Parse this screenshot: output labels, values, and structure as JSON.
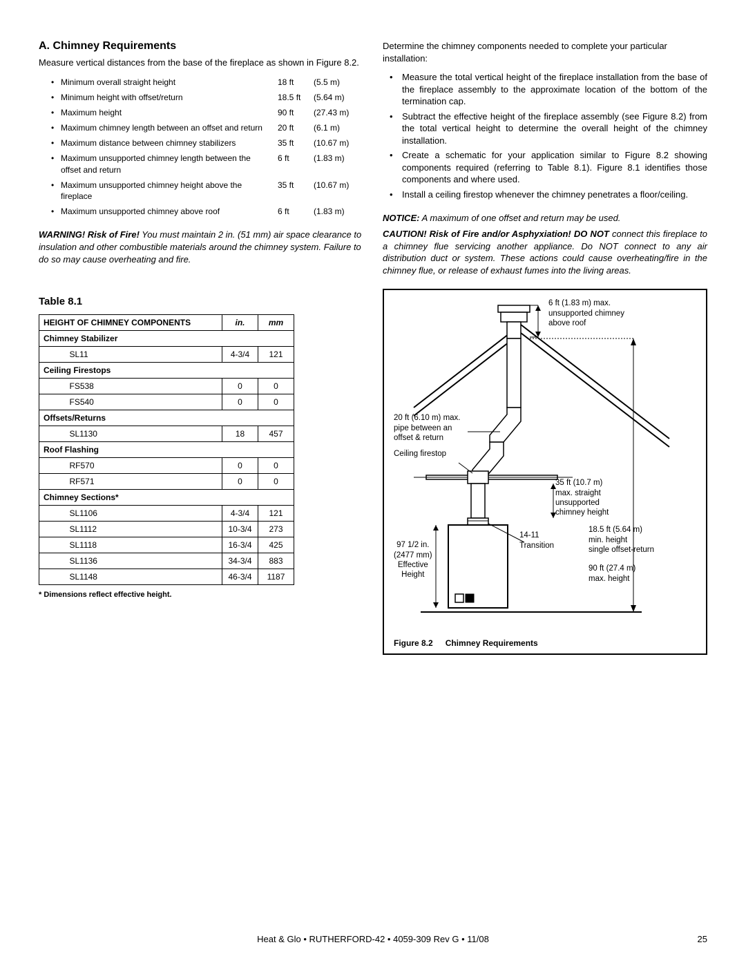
{
  "left": {
    "title": "A. Chimney Requirements",
    "intro": "Measure vertical distances from the base of the fireplace as shown in Figure 8.2.",
    "reqs": [
      {
        "label": "Minimum overall straight height",
        "ft": "18 ft",
        "m": "(5.5 m)"
      },
      {
        "label": "Minimum height with offset/return",
        "ft": "18.5 ft",
        "m": "(5.64 m)"
      },
      {
        "label": "Maximum height",
        "ft": "90 ft",
        "m": "(27.43 m)"
      },
      {
        "label": "Maximum chimney length between an offset and return",
        "ft": "20 ft",
        "m": "(6.1 m)"
      },
      {
        "label": "Maximum distance between chimney stabilizers",
        "ft": "35 ft",
        "m": "(10.67 m)"
      },
      {
        "label": "Maximum unsupported chimney length between the offset and return",
        "ft": "6 ft",
        "m": "(1.83 m)"
      },
      {
        "label": "Maximum unsupported chimney height above the fireplace",
        "ft": "35 ft",
        "m": "(10.67 m)"
      },
      {
        "label": "Maximum unsupported chimney above roof",
        "ft": "6 ft",
        "m": "(1.83 m)"
      }
    ],
    "warning_bold": "WARNING! Risk of Fire!",
    "warning_rest": " You must maintain 2 in. (51 mm) air space clearance to insulation and other combustible materials around the chimney system. Failure to do so may cause overheating and fire.",
    "table_title": "Table 8.1",
    "table_header": {
      "c0": "HEIGHT OF CHIMNEY COMPONENTS",
      "c1": "in.",
      "c2": "mm"
    },
    "rows": [
      {
        "type": "group",
        "label": "Chimney Stabilizer"
      },
      {
        "type": "data",
        "name": "SL11",
        "in": "4-3/4",
        "mm": "121"
      },
      {
        "type": "group",
        "label": "Ceiling Firestops"
      },
      {
        "type": "data",
        "name": "FS538",
        "in": "0",
        "mm": "0"
      },
      {
        "type": "data",
        "name": "FS540",
        "in": "0",
        "mm": "0"
      },
      {
        "type": "group",
        "label": "Offsets/Returns"
      },
      {
        "type": "data",
        "name": "SL1130",
        "in": "18",
        "mm": "457"
      },
      {
        "type": "group",
        "label": "Roof Flashing"
      },
      {
        "type": "data",
        "name": "RF570",
        "in": "0",
        "mm": "0"
      },
      {
        "type": "data",
        "name": "RF571",
        "in": "0",
        "mm": "0"
      },
      {
        "type": "group",
        "label": "Chimney Sections*"
      },
      {
        "type": "data",
        "name": "SL1106",
        "in": "4-3/4",
        "mm": "121"
      },
      {
        "type": "data",
        "name": "SL1112",
        "in": "10-3/4",
        "mm": "273"
      },
      {
        "type": "data",
        "name": "SL1118",
        "in": "16-3/4",
        "mm": "425"
      },
      {
        "type": "data",
        "name": "SL1136",
        "in": "34-3/4",
        "mm": "883"
      },
      {
        "type": "data",
        "name": "SL1148",
        "in": "46-3/4",
        "mm": "1187"
      }
    ],
    "footnote": "* Dimensions reflect effective height."
  },
  "right": {
    "intro": "Determine the chimney components needed to complete your particular installation:",
    "steps": [
      "Measure the total vertical height of the fireplace installation from the base of the fireplace assembly to the approximate location of the bottom of the termination cap.",
      "Subtract the effective height of the fireplace assembly (see Figure 8.2) from the total vertical height to determine the overall height of the chimney installation.",
      "Create a schematic for your application similar to Figure 8.2 showing components required (referring to Table 8.1). Figure 8.1 identifies those components and where used.",
      "Install a ceiling firestop whenever the chimney penetrates a floor/ceiling."
    ],
    "notice_bold": "NOTICE:",
    "notice_rest": " A maximum of one offset and return may be used.",
    "caution_bold": "CAUTION! Risk of Fire and/or Asphyxiation! DO NOT",
    "caution_rest": " connect this fireplace to a chimney flue servicing another appliance. Do NOT connect to any air distribution duct or system. These actions could cause overheating/fire in the chimney flue, or release of exhaust fumes into the living areas.",
    "figure": {
      "labels": {
        "top": "6 ft (1.83 m) max.\nunsupported chimney\nabove roof",
        "pipe": "20 ft (6.10 m) max.\npipe between an\noffset & return",
        "firestop": "Ceiling firestop",
        "straight": "35 ft (10.7 m)\nmax. straight\nunsupported\nchimney height",
        "transition": "14-11\nTransition",
        "effheight": "97 1/2 in.\n(2477 mm)\nEffective\nHeight",
        "minheight": "18.5 ft (5.64 m)\nmin. height\nsingle offset-return",
        "maxheight": "90 ft (27.4 m)\nmax. height"
      },
      "caption_num": "Figure 8.2",
      "caption_txt": "Chimney Requirements"
    }
  },
  "footer": "Heat & Glo • RUTHERFORD-42 • 4059-309 Rev G • 11/08",
  "page": "25"
}
